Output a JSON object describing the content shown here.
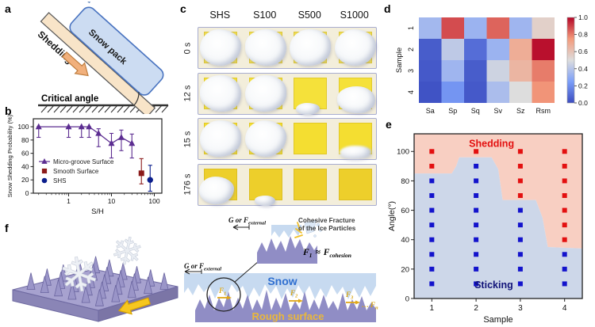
{
  "panels": {
    "a": {
      "label": "a",
      "shedding": "Shedding",
      "snow_pack": "Snow pack",
      "critical_angle": "Critical angle"
    },
    "b": {
      "label": "b"
    },
    "c": {
      "label": "c",
      "columns": [
        "SHS",
        "S100",
        "S500",
        "S1000"
      ],
      "rows": [
        {
          "time": "0 s",
          "square_color": "#EFDC52",
          "states": [
            "covered",
            "covered",
            "covered",
            "covered"
          ]
        },
        {
          "time": "12 s",
          "square_color": "#F5E13A",
          "states": [
            "covered",
            "covered",
            "shed-below",
            "sliding-low"
          ]
        },
        {
          "time": "15 s",
          "square_color": "#F4DE31",
          "states": [
            "covered",
            "covered",
            "bare",
            "shedding-bottom"
          ]
        },
        {
          "time": "176 s",
          "square_color": "#EDCF2B",
          "states": [
            "bottom-left",
            "shed-below-small",
            "bare",
            "bare"
          ]
        }
      ]
    },
    "d": {
      "label": "d"
    },
    "e": {
      "label": "e"
    },
    "f": {
      "label": "f",
      "snowflake": "❄"
    }
  },
  "mid": {
    "g": "G or F",
    "sub_external": "external",
    "cohesive1": "Cohesive Fracture",
    "cohesive2": "of the Ice Particles",
    "f": "F",
    "sub1": "1",
    "sub2": "2",
    "sub3": "3",
    "sub_n": "n",
    "dots": "…",
    "approx": "≈",
    "sub_cohesion": "cohesion",
    "snow": "Snow",
    "rough": "Rough surface"
  },
  "chart_data": [
    {
      "panel": "b",
      "type": "scatter",
      "x_scale": "log",
      "xlabel": "S/H",
      "ylabel": "Snow Shedding Probability (%)",
      "xlim": [
        0.15,
        150
      ],
      "ylim": [
        0,
        112
      ],
      "x_ticks": [
        1,
        10,
        100
      ],
      "y_ticks": [
        0,
        20,
        40,
        60,
        80,
        100
      ],
      "legend_position": "lower left",
      "series": [
        {
          "name": "Micro-groove Surface",
          "marker": "triangle",
          "color": "#5C2D91",
          "line": true,
          "x": [
            0.2,
            1,
            2,
            3,
            5,
            10,
            17,
            30
          ],
          "y": [
            100,
            100,
            100,
            100,
            90,
            75,
            84,
            75
          ],
          "y_lo": [
            84,
            84,
            84,
            84,
            70,
            53,
            64,
            53
          ],
          "y_hi": [
            100,
            100,
            100,
            100,
            97,
            90,
            95,
            89
          ]
        },
        {
          "name": "Smooth Surface",
          "marker": "square",
          "color": "#8B1A1A",
          "line": false,
          "x": [
            50
          ],
          "y": [
            30
          ],
          "y_lo": [
            14
          ],
          "y_hi": [
            52
          ]
        },
        {
          "name": "SHS",
          "marker": "circle",
          "color": "#0B1E8C",
          "line": false,
          "x": [
            80
          ],
          "y": [
            20
          ],
          "y_lo": [
            3
          ],
          "y_hi": [
            42
          ]
        }
      ]
    },
    {
      "panel": "d",
      "type": "heatmap",
      "ylabel": "Sample",
      "x_categories": [
        "Sa",
        "Sp",
        "Sq",
        "Sv",
        "Sz",
        "Rsm"
      ],
      "y_categories": [
        "1",
        "2",
        "3",
        "4"
      ],
      "values": [
        [
          0.35,
          0.88,
          0.33,
          0.84,
          0.34,
          0.55
        ],
        [
          0.05,
          0.42,
          0.1,
          0.33,
          0.68,
          0.98
        ],
        [
          0.04,
          0.34,
          0.05,
          0.46,
          0.65,
          0.8
        ],
        [
          0.02,
          0.22,
          0.04,
          0.37,
          0.5,
          0.76
        ]
      ],
      "colormap": "coolwarm",
      "vmin": 0,
      "vmax": 1,
      "colorbar_ticks": [
        0.0,
        0.2,
        0.4,
        0.6,
        0.8,
        1.0
      ]
    },
    {
      "panel": "e",
      "type": "scatter",
      "xlabel": "Sample",
      "ylabel": "Angle(°)",
      "xlim": [
        0.6,
        4.4
      ],
      "ylim": [
        0,
        112
      ],
      "x_ticks": [
        1,
        2,
        3,
        4
      ],
      "y_ticks": [
        0,
        20,
        40,
        60,
        80,
        100
      ],
      "samples": [
        1,
        2,
        3,
        4
      ],
      "angles": [
        10,
        20,
        30,
        40,
        50,
        60,
        70,
        80,
        90,
        100
      ],
      "shedding_min_angle": [
        90,
        100,
        70,
        40
      ],
      "colors": {
        "shedding": "#E31010",
        "sticking": "#1313CC"
      },
      "regions": {
        "shedding_label": "Shedding",
        "sticking_label": "Sticking",
        "shedding_fill": "#F8CFC2",
        "sticking_fill": "#CDD7E9",
        "shedding_text": "#E31010",
        "sticking_text": "#111379"
      },
      "boundary": [
        [
          0.6,
          85
        ],
        [
          1.45,
          85
        ],
        [
          1.55,
          90
        ],
        [
          1.62,
          96
        ],
        [
          2.35,
          96
        ],
        [
          2.5,
          88
        ],
        [
          2.6,
          67
        ],
        [
          3.35,
          67
        ],
        [
          3.5,
          55
        ],
        [
          3.62,
          35
        ],
        [
          4.4,
          34
        ]
      ]
    }
  ]
}
